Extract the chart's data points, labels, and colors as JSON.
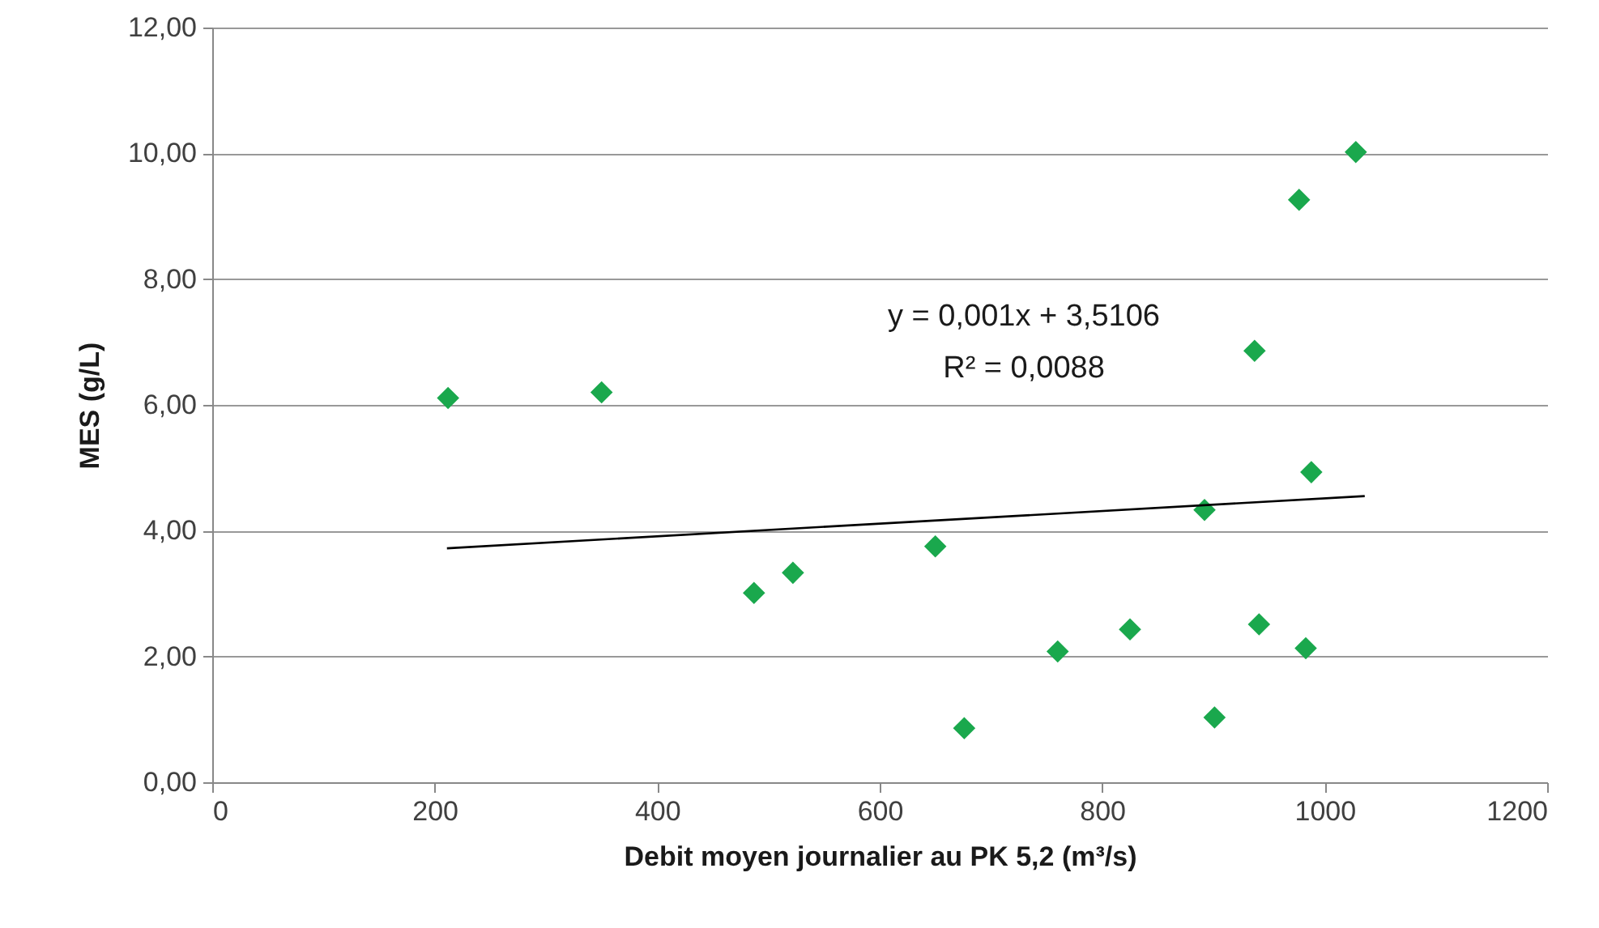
{
  "chart_data": {
    "type": "scatter",
    "xlabel": "Debit moyen journalier au PK 5,2 (m³/s)",
    "ylabel": "MES (g/L)",
    "xlim": [
      0,
      1200
    ],
    "xticks": [
      0,
      200,
      400,
      600,
      800,
      1000,
      1200
    ],
    "ylim": [
      0,
      12
    ],
    "yticks": [
      {
        "value": 0,
        "label": "0,00"
      },
      {
        "value": 2,
        "label": "2,00"
      },
      {
        "value": 4,
        "label": "4,00"
      },
      {
        "value": 6,
        "label": "6,00"
      },
      {
        "value": 8,
        "label": "8,00"
      },
      {
        "value": 10,
        "label": "10,00"
      },
      {
        "value": 12,
        "label": "12,00"
      }
    ],
    "grid": "y",
    "annotations": [
      "y = 0,001x + 3,5106",
      "R² = 0,0088"
    ],
    "series": [
      {
        "marker": "diamond",
        "color": "#1aa84d",
        "x": [
          212,
          350,
          487,
          522,
          650,
          676,
          760,
          825,
          892,
          901,
          937,
          941,
          977,
          983,
          988,
          1028
        ],
        "values": [
          6.11,
          6.2,
          3.01,
          3.33,
          3.75,
          0.86,
          2.08,
          2.43,
          4.33,
          1.03,
          6.86,
          2.51,
          9.26,
          2.13,
          4.93,
          10.02
        ]
      },
      {
        "type": "line",
        "color": "#000000",
        "x": [
          211,
          1036
        ],
        "values": [
          3.72,
          4.55
        ]
      }
    ]
  }
}
